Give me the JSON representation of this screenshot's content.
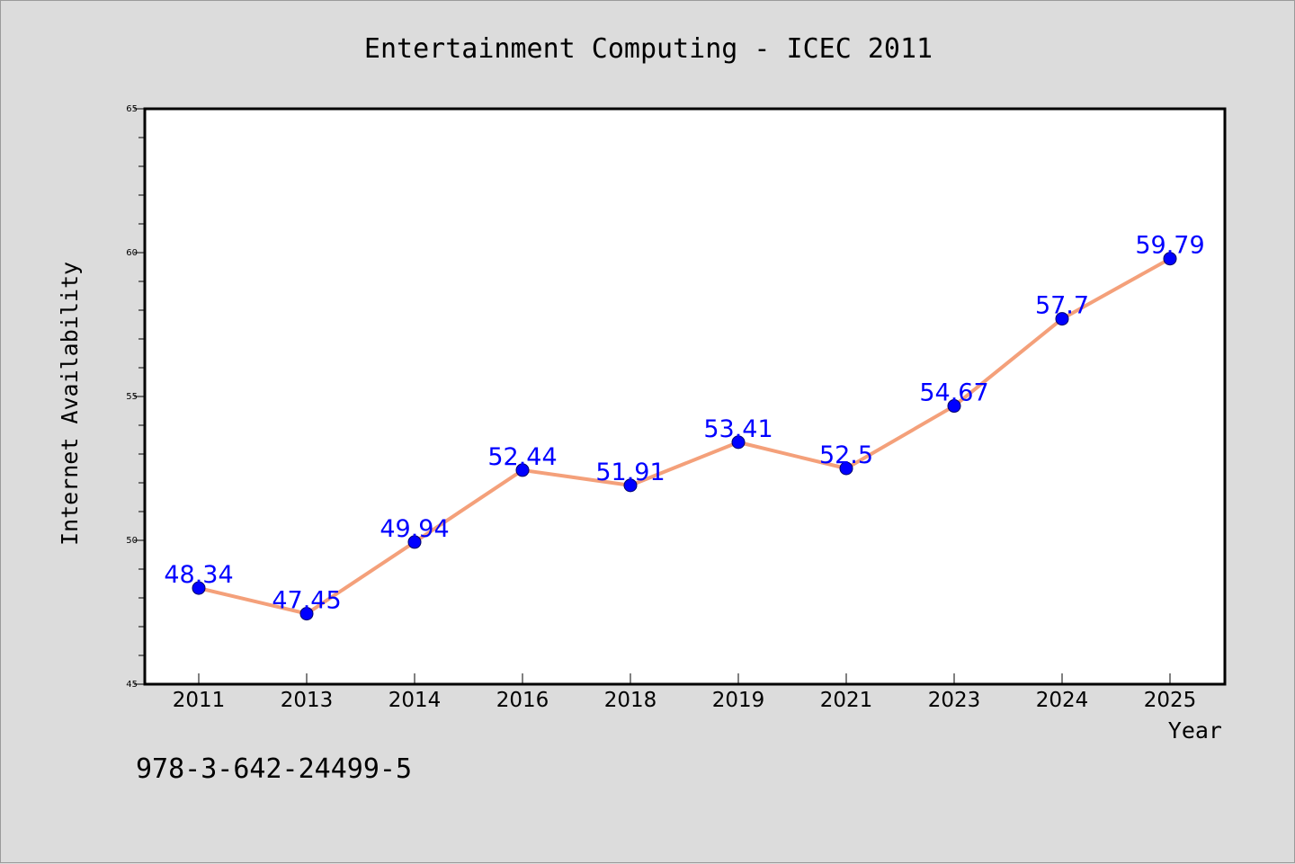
{
  "chart_data": {
    "type": "line",
    "title": "Entertainment Computing - ICEC 2011",
    "xlabel": "Year",
    "ylabel": "Internet Availability",
    "categories": [
      "2011",
      "2013",
      "2014",
      "2016",
      "2018",
      "2019",
      "2021",
      "2023",
      "2024",
      "2025"
    ],
    "series": [
      {
        "values": [
          48.34,
          47.45,
          49.94,
          52.44,
          51.91,
          53.41,
          52.5,
          54.67,
          57.7,
          59.79
        ],
        "labels": [
          "48.34",
          "47.45",
          "49.94",
          "52.44",
          "51.91",
          "53.41",
          "52.5",
          "54.67",
          "57.7",
          "59.79"
        ],
        "line_color": "#f4a07a",
        "marker_color": "#0000ff"
      }
    ],
    "ylim": [
      45,
      65
    ],
    "yticks": [
      "45",
      "50",
      "55",
      "60",
      "65"
    ],
    "grid": false,
    "legend": "none"
  },
  "footer_text": "978-3-642-24499-5"
}
